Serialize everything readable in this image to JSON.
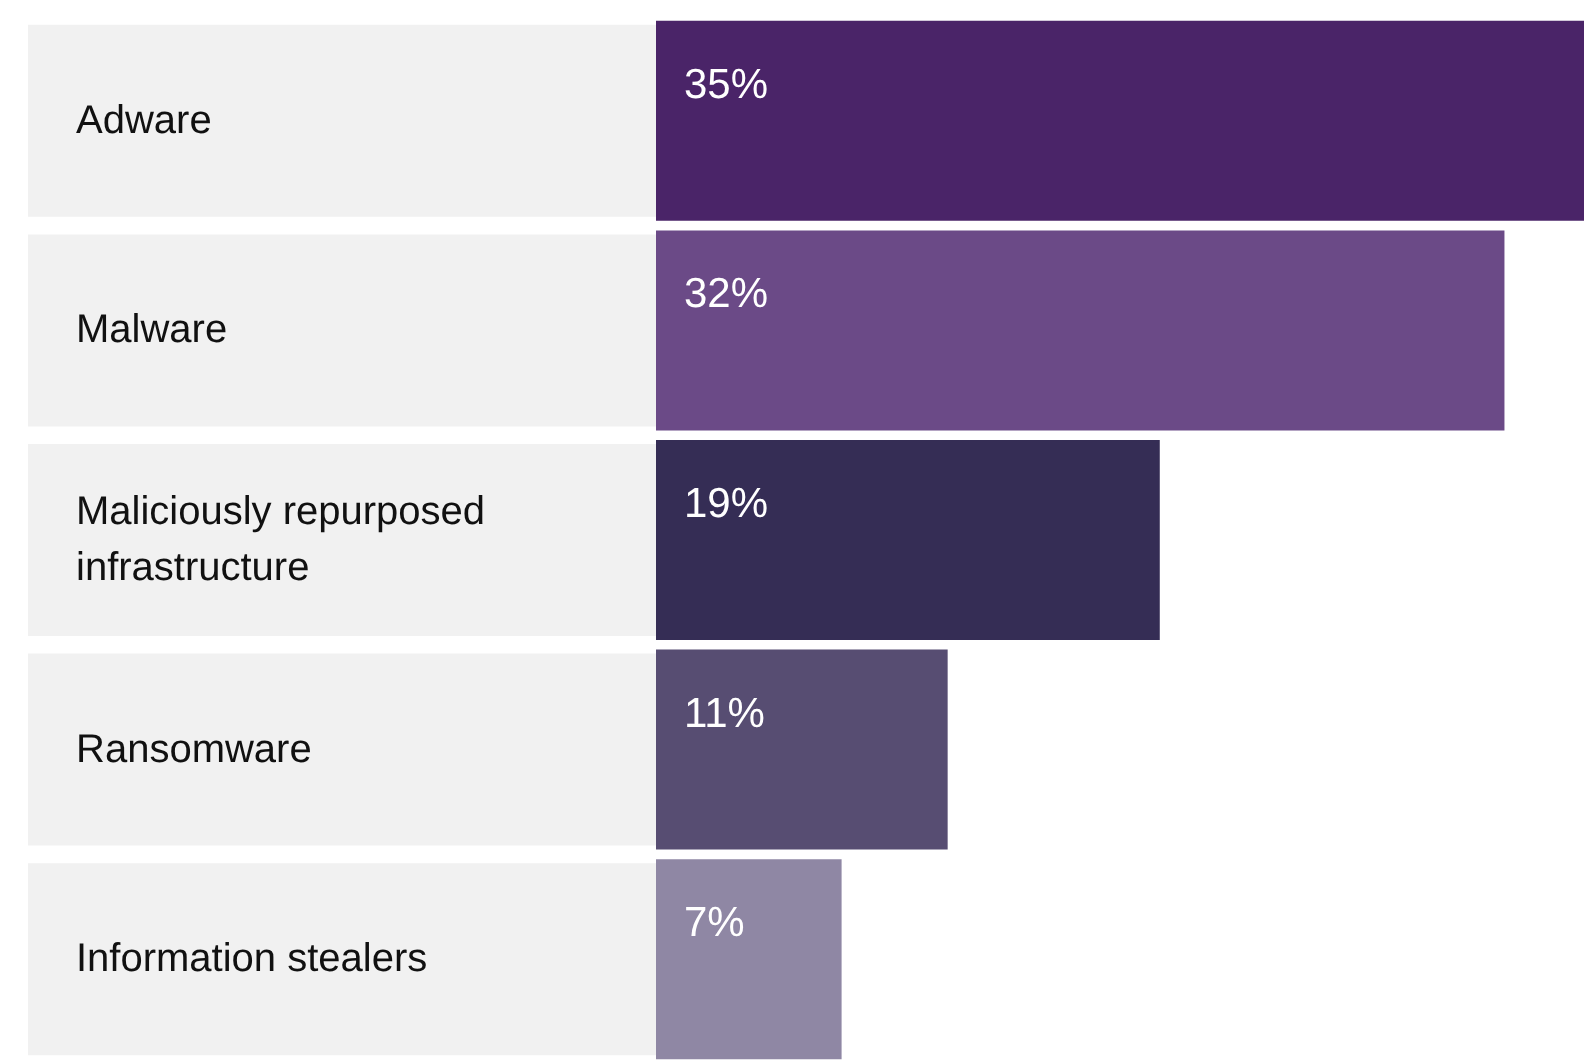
{
  "chart_data": {
    "type": "bar",
    "orientation": "horizontal",
    "categories": [
      "Adware",
      "Malware",
      "Maliciously repurposed infrastructure",
      "Ransomware",
      "Information stealers"
    ],
    "values": [
      35,
      32,
      19,
      11,
      7
    ],
    "value_labels": [
      "35%",
      "32%",
      "19%",
      "11%",
      "7%"
    ],
    "colors": [
      "#4a2468",
      "#6b4a87",
      "#352d55",
      "#574d72",
      "#8f87a4"
    ]
  }
}
